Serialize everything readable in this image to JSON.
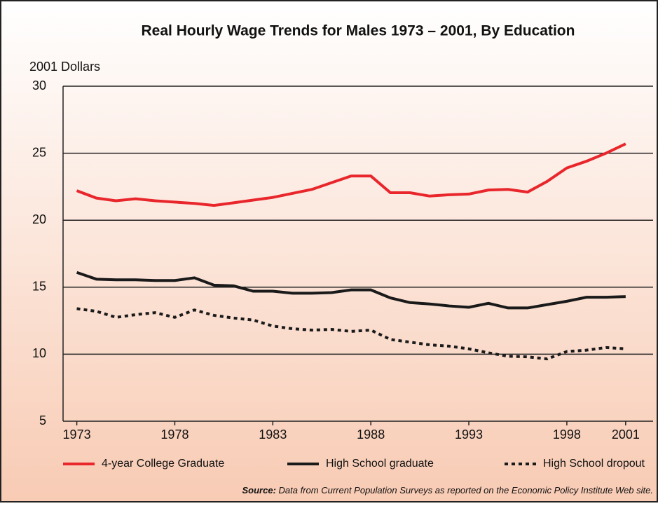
{
  "chart_data": {
    "type": "line",
    "title": "Real Hourly Wage Trends for Males 1973 – 2001, By Education",
    "y_label": "2001 Dollars",
    "source_label": "Source:",
    "source_text": "Data from Current Population Surveys as reported on the Economic Policy Institute Web site.",
    "x": [
      1973,
      1974,
      1975,
      1976,
      1977,
      1978,
      1979,
      1980,
      1981,
      1982,
      1983,
      1984,
      1985,
      1986,
      1987,
      1988,
      1989,
      1990,
      1991,
      1992,
      1993,
      1994,
      1995,
      1996,
      1997,
      1998,
      1999,
      2000,
      2001
    ],
    "series": [
      {
        "name": "4-year College Graduate",
        "color": "#e8262b",
        "style": "solid",
        "values": [
          22.2,
          21.65,
          21.45,
          21.6,
          21.45,
          21.35,
          21.25,
          21.1,
          21.3,
          21.5,
          21.7,
          22.0,
          22.3,
          22.8,
          23.3,
          23.3,
          22.05,
          22.05,
          21.8,
          21.9,
          21.95,
          22.25,
          22.3,
          22.1,
          22.9,
          23.9,
          24.4,
          25.0,
          25.7
        ]
      },
      {
        "name": "High School graduate",
        "color": "#1a1a1a",
        "style": "solid",
        "values": [
          16.1,
          15.6,
          15.55,
          15.55,
          15.5,
          15.5,
          15.7,
          15.15,
          15.1,
          14.7,
          14.7,
          14.55,
          14.55,
          14.6,
          14.8,
          14.8,
          14.2,
          13.85,
          13.75,
          13.6,
          13.5,
          13.8,
          13.45,
          13.45,
          13.7,
          13.95,
          14.25,
          14.25,
          14.3
        ]
      },
      {
        "name": "High School dropout",
        "color": "#1a1a1a",
        "style": "dotted",
        "values": [
          13.4,
          13.2,
          12.75,
          12.95,
          13.1,
          12.75,
          13.3,
          12.9,
          12.7,
          12.55,
          12.1,
          11.9,
          11.8,
          11.85,
          11.7,
          11.8,
          11.1,
          10.9,
          10.7,
          10.6,
          10.4,
          10.1,
          9.85,
          9.8,
          9.65,
          10.2,
          10.3,
          10.5,
          10.4
        ]
      }
    ],
    "xlim": [
      1972.3,
      2002.4
    ],
    "xticks": [
      1973,
      1978,
      1983,
      1988,
      1993,
      1998,
      2001
    ],
    "ylim": [
      5,
      30
    ],
    "yticks": [
      5,
      10,
      15,
      20,
      25,
      30
    ],
    "grid": true,
    "legend": "bottom"
  }
}
